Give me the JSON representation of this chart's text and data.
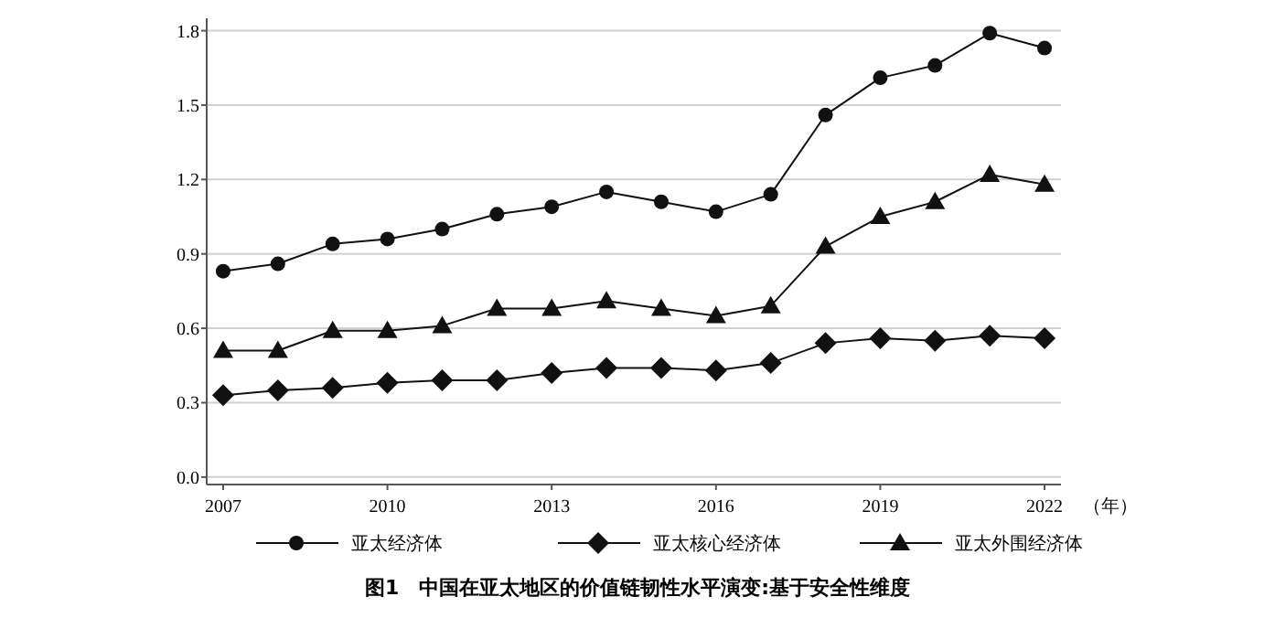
{
  "chart_data": {
    "type": "line",
    "title": "图1　中国在亚太地区的价值链韧性水平演变:基于安全性维度",
    "xlabel": "（年）",
    "x": [
      2007,
      2008,
      2009,
      2010,
      2011,
      2012,
      2013,
      2014,
      2015,
      2016,
      2017,
      2018,
      2019,
      2020,
      2021,
      2022
    ],
    "series": [
      {
        "name": "亚太经济体",
        "color": "#111111",
        "marker": "circle",
        "values": [
          0.83,
          0.86,
          0.94,
          0.96,
          1.0,
          1.06,
          1.09,
          1.15,
          1.11,
          1.07,
          1.14,
          1.46,
          1.61,
          1.66,
          1.79,
          1.73
        ]
      },
      {
        "name": "亚太核心经济体",
        "color": "#111111",
        "marker": "diamond",
        "values": [
          0.33,
          0.35,
          0.36,
          0.38,
          0.39,
          0.39,
          0.42,
          0.44,
          0.44,
          0.43,
          0.46,
          0.54,
          0.56,
          0.55,
          0.57,
          0.56
        ]
      },
      {
        "name": "亚太外围经济体",
        "color": "#111111",
        "marker": "triangle",
        "values": [
          0.51,
          0.51,
          0.59,
          0.59,
          0.61,
          0.68,
          0.68,
          0.71,
          0.68,
          0.65,
          0.69,
          0.93,
          1.05,
          1.11,
          1.22,
          1.18
        ]
      }
    ],
    "xlim": [
      2006.7,
      2022.3
    ],
    "xticks": [
      2007,
      2010,
      2013,
      2016,
      2019,
      2022
    ],
    "ylim": [
      -0.03,
      1.85
    ],
    "yticks": [
      {
        "value": 0,
        "label": "0.0"
      },
      {
        "value": 0.3,
        "label": "0.3"
      },
      {
        "value": 0.6,
        "label": "0.6"
      },
      {
        "value": 0.9,
        "label": "0.9"
      },
      {
        "value": 1.2,
        "label": "1.2"
      },
      {
        "value": 1.5,
        "label": "1.5"
      },
      {
        "value": 1.8,
        "label": "1.8"
      }
    ],
    "grid": "y",
    "legend": "bottom",
    "line_style": "solid"
  }
}
